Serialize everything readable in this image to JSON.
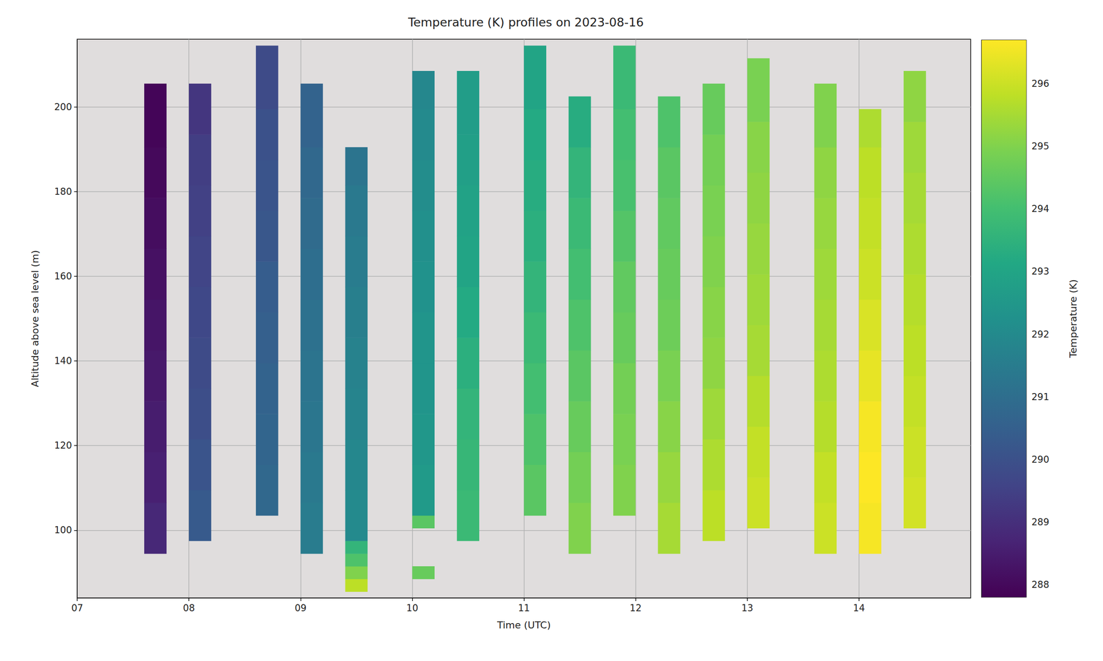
{
  "chart_data": {
    "type": "heatmap",
    "title": "Temperature (K) profiles on 2023-08-16",
    "x_label": "Time (UTC)",
    "y_label": "Altitude above sea level (m)",
    "xlim": [
      7,
      15
    ],
    "xticks": [
      {
        "value": 7,
        "label": "07"
      },
      {
        "value": 8,
        "label": "08"
      },
      {
        "value": 9,
        "label": "09"
      },
      {
        "value": 10,
        "label": "10"
      },
      {
        "value": 11,
        "label": "11"
      },
      {
        "value": 12,
        "label": "12"
      },
      {
        "value": 13,
        "label": "13"
      },
      {
        "value": 14,
        "label": "14"
      }
    ],
    "ylim": [
      84,
      216
    ],
    "yticks": [
      100,
      120,
      140,
      160,
      180,
      200
    ],
    "grid": true,
    "profiles": [
      {
        "time": [
          7.6,
          7.8
        ],
        "altitude_edges": [
          94.5,
          106.5,
          118.5,
          130.5,
          142.5,
          154.5,
          166.5,
          178.5,
          190.5,
          205.5
        ],
        "values": [
          288.8,
          288.6,
          288.5,
          288.4,
          288.3,
          288.2,
          288.1,
          288.0,
          287.9
        ]
      },
      {
        "time": [
          8.0,
          8.2
        ],
        "altitude_edges": [
          97.5,
          109.5,
          121.5,
          133.5,
          145.5,
          157.5,
          169.5,
          181.5,
          193.5,
          205.5
        ],
        "values": [
          290.3,
          290.1,
          289.9,
          289.8,
          289.7,
          289.6,
          289.5,
          289.4,
          289.2
        ]
      },
      {
        "time": [
          8.6,
          8.8
        ],
        "altitude_edges": [
          103.5,
          115.5,
          127.5,
          139.5,
          151.5,
          163.5,
          175.5,
          187.5,
          199.5,
          214.5
        ],
        "values": [
          290.8,
          290.7,
          290.6,
          290.5,
          290.4,
          290.2,
          290.1,
          290.0,
          289.8
        ]
      },
      {
        "time": [
          9.0,
          9.2
        ],
        "altitude_edges": [
          94.5,
          106.5,
          118.5,
          130.5,
          142.5,
          154.5,
          166.5,
          178.5,
          190.5,
          205.5
        ],
        "values": [
          291.5,
          291.4,
          291.3,
          291.2,
          291.1,
          291.0,
          290.9,
          290.8,
          290.6
        ]
      },
      {
        "time": [
          9.4,
          9.6
        ],
        "altitude_edges": [
          85.5,
          88.5,
          91.5,
          94.5,
          97.5,
          109.5,
          121.5,
          133.5,
          145.5,
          157.5,
          169.5,
          181.5,
          190.5
        ],
        "values": [
          295.8,
          295.0,
          294.2,
          293.6,
          292.0,
          291.9,
          291.8,
          291.7,
          291.6,
          291.5,
          291.4,
          291.2
        ]
      },
      {
        "time": [
          10.0,
          10.2
        ],
        "altitude_edges": [
          88.5,
          91.5,
          100.5,
          103.5,
          115.5,
          127.5,
          139.5,
          151.5,
          163.5,
          175.5,
          187.5,
          199.5,
          208.5
        ],
        "values": [
          294.6,
          null,
          294.4,
          292.6,
          292.5,
          292.4,
          292.4,
          292.3,
          292.2,
          292.1,
          292.0,
          291.9
        ]
      },
      {
        "time": [
          10.4,
          10.6
        ],
        "altitude_edges": [
          97.5,
          109.5,
          121.5,
          133.5,
          145.5,
          157.5,
          169.5,
          181.5,
          193.5,
          208.5
        ],
        "values": [
          293.8,
          293.7,
          293.6,
          293.4,
          293.2,
          293.0,
          292.9,
          292.8,
          292.7
        ]
      },
      {
        "time": [
          11.0,
          11.2
        ],
        "altitude_edges": [
          103.5,
          115.5,
          127.5,
          139.5,
          151.5,
          163.5,
          175.5,
          187.5,
          199.5,
          214.5
        ],
        "values": [
          294.4,
          294.2,
          294.0,
          293.8,
          293.6,
          293.4,
          293.3,
          293.2,
          293.0
        ]
      },
      {
        "time": [
          11.4,
          11.6
        ],
        "altitude_edges": [
          94.5,
          106.5,
          118.5,
          130.5,
          142.5,
          154.5,
          166.5,
          178.5,
          190.5,
          202.5
        ],
        "values": [
          295.0,
          294.8,
          294.6,
          294.4,
          294.2,
          294.0,
          293.8,
          293.6,
          293.3
        ]
      },
      {
        "time": [
          11.8,
          12.0
        ],
        "altitude_edges": [
          103.5,
          115.5,
          127.5,
          139.5,
          151.5,
          163.5,
          175.5,
          187.5,
          199.5,
          214.5
        ],
        "values": [
          295.0,
          294.9,
          294.8,
          294.6,
          294.5,
          294.3,
          294.1,
          294.0,
          293.8
        ]
      },
      {
        "time": [
          12.2,
          12.4
        ],
        "altitude_edges": [
          94.5,
          106.5,
          118.5,
          130.5,
          142.5,
          154.5,
          166.5,
          178.5,
          190.5,
          202.5
        ],
        "values": [
          295.5,
          295.3,
          295.1,
          294.9,
          294.7,
          294.6,
          294.5,
          294.4,
          294.2
        ]
      },
      {
        "time": [
          12.6,
          12.8
        ],
        "altitude_edges": [
          97.5,
          109.5,
          121.5,
          133.5,
          145.5,
          157.5,
          169.5,
          181.5,
          193.5,
          205.5
        ],
        "values": [
          295.8,
          295.6,
          295.4,
          295.2,
          295.1,
          295.0,
          294.9,
          294.8,
          294.6
        ]
      },
      {
        "time": [
          13.0,
          13.2
        ],
        "altitude_edges": [
          100.5,
          112.5,
          124.5,
          136.5,
          148.5,
          160.5,
          172.5,
          184.5,
          196.5,
          211.5
        ],
        "values": [
          296.0,
          295.9,
          295.7,
          295.5,
          295.4,
          295.3,
          295.2,
          295.1,
          294.9
        ]
      },
      {
        "time": [
          13.6,
          13.8
        ],
        "altitude_edges": [
          94.5,
          106.5,
          118.5,
          130.5,
          142.5,
          154.5,
          166.5,
          178.5,
          190.5,
          205.5
        ],
        "values": [
          296.0,
          295.9,
          295.7,
          295.6,
          295.5,
          295.4,
          295.3,
          295.2,
          295.0
        ]
      },
      {
        "time": [
          14.0,
          14.2
        ],
        "altitude_edges": [
          94.5,
          106.5,
          118.5,
          130.5,
          142.5,
          154.5,
          166.5,
          178.5,
          190.5,
          199.5
        ],
        "values": [
          296.6,
          296.7,
          296.6,
          296.4,
          296.2,
          296.0,
          295.9,
          295.8,
          295.6
        ]
      },
      {
        "time": [
          14.4,
          14.6
        ],
        "altitude_edges": [
          100.5,
          112.5,
          124.5,
          136.5,
          148.5,
          160.5,
          172.5,
          184.5,
          196.5,
          208.5
        ],
        "values": [
          296.1,
          296.0,
          295.9,
          295.8,
          295.7,
          295.6,
          295.5,
          295.4,
          295.2
        ]
      }
    ],
    "colorbar": {
      "label": "Temperature (K)",
      "range": [
        287.8,
        296.7
      ],
      "ticks": [
        288,
        289,
        290,
        291,
        292,
        293,
        294,
        295,
        296
      ]
    }
  }
}
